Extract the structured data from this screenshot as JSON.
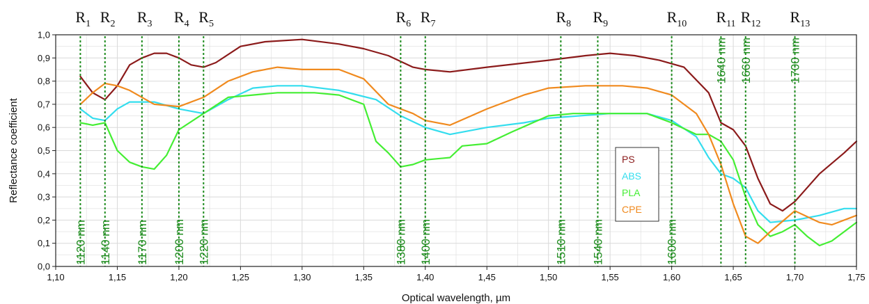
{
  "chart_data": {
    "type": "line",
    "xlabel": "Optical wavelength, µm",
    "ylabel": "Reflectance coefficient",
    "xlim": [
      1.1,
      1.75
    ],
    "ylim": [
      0.0,
      1.0
    ],
    "x_ticks": [
      "1,10",
      "1,15",
      "1,20",
      "1,25",
      "1,30",
      "1,35",
      "1,40",
      "1,45",
      "1,50",
      "1,55",
      "1,60",
      "1,65",
      "1,70",
      "1,75"
    ],
    "y_ticks": [
      "0,0",
      "0,1",
      "0,2",
      "0,3",
      "0,4",
      "0,5",
      "0,6",
      "0,7",
      "0,8",
      "0,9",
      "1,0"
    ],
    "grid": true,
    "legend_position": "center-right",
    "series": [
      {
        "name": "PS",
        "color": "#8b1a1a",
        "points": [
          [
            1.12,
            0.82
          ],
          [
            1.13,
            0.75
          ],
          [
            1.14,
            0.72
          ],
          [
            1.15,
            0.78
          ],
          [
            1.16,
            0.87
          ],
          [
            1.17,
            0.9
          ],
          [
            1.18,
            0.92
          ],
          [
            1.19,
            0.92
          ],
          [
            1.2,
            0.9
          ],
          [
            1.21,
            0.87
          ],
          [
            1.22,
            0.86
          ],
          [
            1.23,
            0.88
          ],
          [
            1.25,
            0.95
          ],
          [
            1.27,
            0.97
          ],
          [
            1.3,
            0.98
          ],
          [
            1.33,
            0.96
          ],
          [
            1.35,
            0.94
          ],
          [
            1.37,
            0.91
          ],
          [
            1.39,
            0.86
          ],
          [
            1.4,
            0.85
          ],
          [
            1.42,
            0.84
          ],
          [
            1.45,
            0.86
          ],
          [
            1.5,
            0.89
          ],
          [
            1.53,
            0.91
          ],
          [
            1.55,
            0.92
          ],
          [
            1.57,
            0.91
          ],
          [
            1.59,
            0.89
          ],
          [
            1.61,
            0.86
          ],
          [
            1.63,
            0.75
          ],
          [
            1.64,
            0.62
          ],
          [
            1.65,
            0.59
          ],
          [
            1.66,
            0.52
          ],
          [
            1.67,
            0.38
          ],
          [
            1.68,
            0.27
          ],
          [
            1.69,
            0.24
          ],
          [
            1.7,
            0.28
          ],
          [
            1.71,
            0.34
          ],
          [
            1.72,
            0.4
          ],
          [
            1.74,
            0.49
          ],
          [
            1.75,
            0.54
          ]
        ]
      },
      {
        "name": "ABS",
        "color": "#33ddee",
        "points": [
          [
            1.12,
            0.68
          ],
          [
            1.13,
            0.64
          ],
          [
            1.14,
            0.63
          ],
          [
            1.15,
            0.68
          ],
          [
            1.16,
            0.71
          ],
          [
            1.18,
            0.71
          ],
          [
            1.2,
            0.68
          ],
          [
            1.22,
            0.66
          ],
          [
            1.24,
            0.72
          ],
          [
            1.26,
            0.77
          ],
          [
            1.28,
            0.78
          ],
          [
            1.3,
            0.78
          ],
          [
            1.33,
            0.76
          ],
          [
            1.36,
            0.72
          ],
          [
            1.38,
            0.65
          ],
          [
            1.4,
            0.6
          ],
          [
            1.42,
            0.57
          ],
          [
            1.45,
            0.6
          ],
          [
            1.48,
            0.62
          ],
          [
            1.5,
            0.64
          ],
          [
            1.55,
            0.66
          ],
          [
            1.58,
            0.66
          ],
          [
            1.6,
            0.63
          ],
          [
            1.62,
            0.56
          ],
          [
            1.63,
            0.47
          ],
          [
            1.64,
            0.4
          ],
          [
            1.65,
            0.38
          ],
          [
            1.66,
            0.34
          ],
          [
            1.67,
            0.24
          ],
          [
            1.68,
            0.19
          ],
          [
            1.7,
            0.2
          ],
          [
            1.72,
            0.22
          ],
          [
            1.74,
            0.25
          ],
          [
            1.75,
            0.25
          ]
        ]
      },
      {
        "name": "PLA",
        "color": "#44ee33",
        "points": [
          [
            1.12,
            0.62
          ],
          [
            1.13,
            0.61
          ],
          [
            1.14,
            0.62
          ],
          [
            1.15,
            0.5
          ],
          [
            1.16,
            0.45
          ],
          [
            1.17,
            0.43
          ],
          [
            1.18,
            0.42
          ],
          [
            1.19,
            0.48
          ],
          [
            1.2,
            0.59
          ],
          [
            1.22,
            0.66
          ],
          [
            1.24,
            0.73
          ],
          [
            1.26,
            0.74
          ],
          [
            1.28,
            0.75
          ],
          [
            1.31,
            0.75
          ],
          [
            1.33,
            0.74
          ],
          [
            1.35,
            0.7
          ],
          [
            1.36,
            0.54
          ],
          [
            1.37,
            0.49
          ],
          [
            1.38,
            0.43
          ],
          [
            1.39,
            0.44
          ],
          [
            1.4,
            0.46
          ],
          [
            1.42,
            0.47
          ],
          [
            1.43,
            0.52
          ],
          [
            1.45,
            0.53
          ],
          [
            1.47,
            0.58
          ],
          [
            1.5,
            0.65
          ],
          [
            1.52,
            0.66
          ],
          [
            1.55,
            0.66
          ],
          [
            1.58,
            0.66
          ],
          [
            1.6,
            0.62
          ],
          [
            1.62,
            0.57
          ],
          [
            1.63,
            0.57
          ],
          [
            1.64,
            0.54
          ],
          [
            1.65,
            0.46
          ],
          [
            1.66,
            0.3
          ],
          [
            1.67,
            0.18
          ],
          [
            1.68,
            0.13
          ],
          [
            1.69,
            0.15
          ],
          [
            1.7,
            0.18
          ],
          [
            1.71,
            0.13
          ],
          [
            1.72,
            0.09
          ],
          [
            1.73,
            0.11
          ],
          [
            1.74,
            0.15
          ],
          [
            1.75,
            0.19
          ]
        ]
      },
      {
        "name": "CPE",
        "color": "#f08a1e",
        "points": [
          [
            1.12,
            0.7
          ],
          [
            1.13,
            0.75
          ],
          [
            1.14,
            0.79
          ],
          [
            1.15,
            0.78
          ],
          [
            1.16,
            0.76
          ],
          [
            1.17,
            0.73
          ],
          [
            1.18,
            0.7
          ],
          [
            1.2,
            0.69
          ],
          [
            1.22,
            0.73
          ],
          [
            1.24,
            0.8
          ],
          [
            1.26,
            0.84
          ],
          [
            1.28,
            0.86
          ],
          [
            1.3,
            0.85
          ],
          [
            1.33,
            0.85
          ],
          [
            1.35,
            0.81
          ],
          [
            1.37,
            0.7
          ],
          [
            1.39,
            0.66
          ],
          [
            1.4,
            0.63
          ],
          [
            1.42,
            0.61
          ],
          [
            1.45,
            0.68
          ],
          [
            1.48,
            0.74
          ],
          [
            1.5,
            0.77
          ],
          [
            1.53,
            0.78
          ],
          [
            1.56,
            0.78
          ],
          [
            1.58,
            0.77
          ],
          [
            1.6,
            0.74
          ],
          [
            1.62,
            0.66
          ],
          [
            1.63,
            0.57
          ],
          [
            1.64,
            0.44
          ],
          [
            1.65,
            0.27
          ],
          [
            1.66,
            0.13
          ],
          [
            1.67,
            0.1
          ],
          [
            1.68,
            0.15
          ],
          [
            1.7,
            0.24
          ],
          [
            1.72,
            0.19
          ],
          [
            1.73,
            0.18
          ],
          [
            1.75,
            0.22
          ]
        ]
      }
    ],
    "markers": [
      {
        "label": "R",
        "sub": "1",
        "x": 1.12,
        "annotation": "1120 nm"
      },
      {
        "label": "R",
        "sub": "2",
        "x": 1.14,
        "annotation": "1140 nm"
      },
      {
        "label": "R",
        "sub": "3",
        "x": 1.17,
        "annotation": "1170 nm"
      },
      {
        "label": "R",
        "sub": "4",
        "x": 1.2,
        "annotation": "1200 nm"
      },
      {
        "label": "R",
        "sub": "5",
        "x": 1.22,
        "annotation": "1220 nm"
      },
      {
        "label": "R",
        "sub": "6",
        "x": 1.38,
        "annotation": "1380 nm"
      },
      {
        "label": "R",
        "sub": "7",
        "x": 1.4,
        "annotation": "1400 nm"
      },
      {
        "label": "R",
        "sub": "8",
        "x": 1.51,
        "annotation": "1510 nm"
      },
      {
        "label": "R",
        "sub": "9",
        "x": 1.54,
        "annotation": "1540 nm"
      },
      {
        "label": "R",
        "sub": "10",
        "x": 1.6,
        "annotation": "1600 nm"
      },
      {
        "label": "R",
        "sub": "11",
        "x": 1.64,
        "annotation": "1640 nm"
      },
      {
        "label": "R",
        "sub": "12",
        "x": 1.66,
        "annotation": "1660 nm"
      },
      {
        "label": "R",
        "sub": "13",
        "x": 1.7,
        "annotation": "1700 nm"
      }
    ],
    "marker_color": "#1e8c1e"
  }
}
